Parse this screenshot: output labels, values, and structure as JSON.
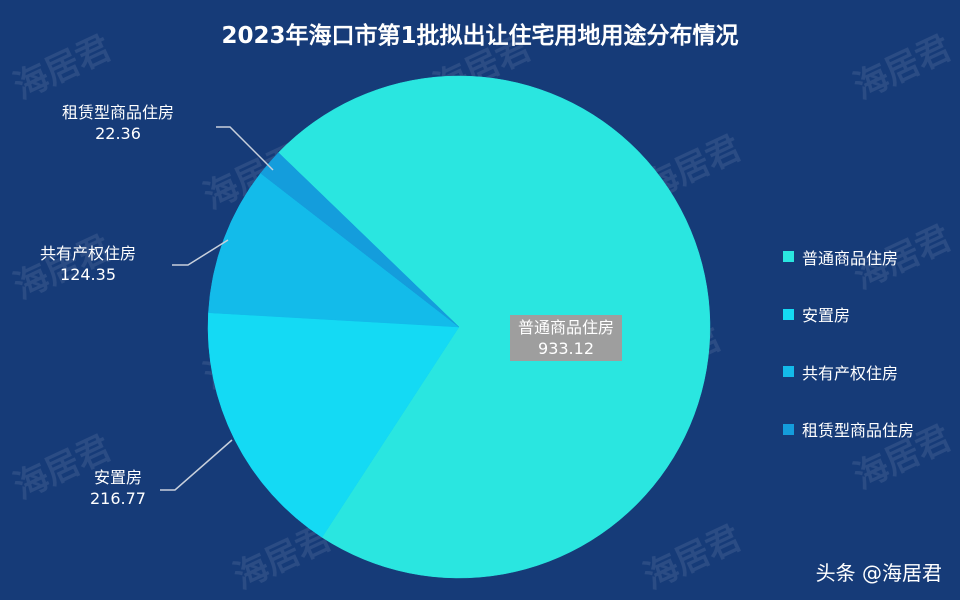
{
  "watermark": "海居君",
  "credit": "头条 @海居君",
  "chart_data": {
    "type": "pie",
    "title": "2023年海口市第1批拟出让住宅用地用途分布情况",
    "categories": [
      "普通商品住房",
      "安置房",
      "共有产权住房",
      "租赁型商品住房"
    ],
    "values": [
      933.12,
      216.77,
      124.35,
      22.36
    ],
    "colors": [
      "#2ae6e0",
      "#14daf4",
      "#13bbea",
      "#149ddc"
    ],
    "legend_position": "right",
    "direction": "clockwise"
  }
}
